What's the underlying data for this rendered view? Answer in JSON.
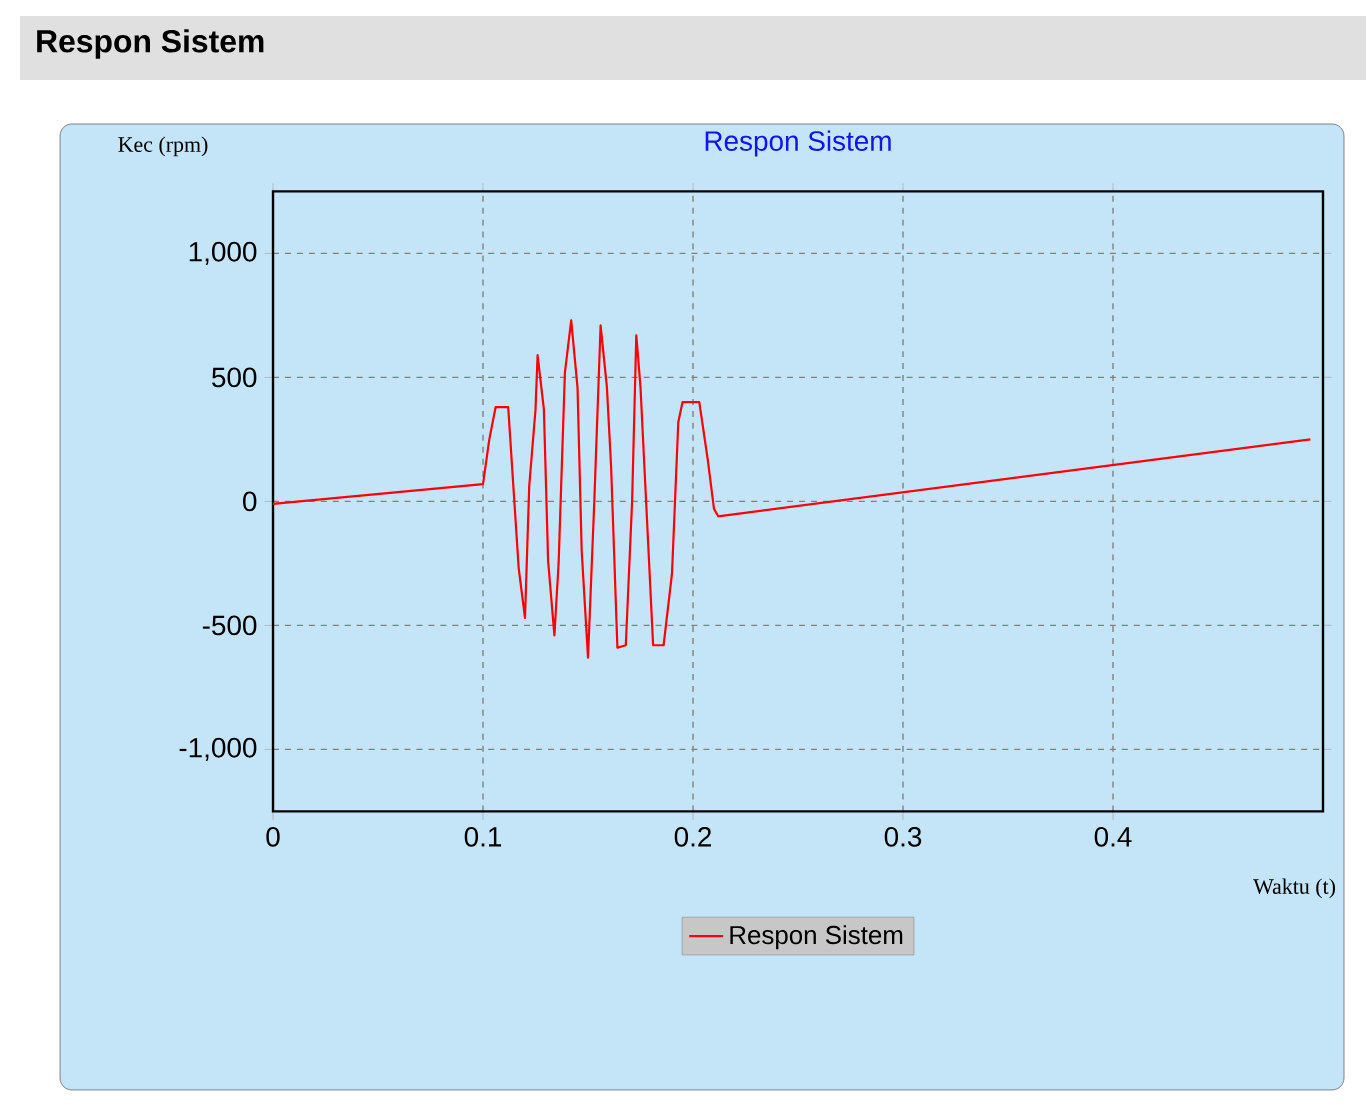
{
  "chart_data": {
    "type": "line",
    "title": "Respon Sistem",
    "xlabel": "Waktu (t)",
    "ylabel": "Kec (rpm)",
    "annotations": [
      "Respon Sistem"
    ],
    "xlim": [
      0,
      0.5
    ],
    "ylim": [
      -1250,
      1250
    ],
    "xticks": [
      0,
      0.1,
      0.2,
      0.3,
      0.4
    ],
    "yticks": [
      {
        "value": -1000,
        "label": "-1,000"
      },
      {
        "value": -500,
        "label": "-500"
      },
      0,
      500,
      {
        "value": 1000,
        "label": "1,000"
      }
    ],
    "grid": true,
    "legend": "bottom",
    "line_style": "solid",
    "marker": "none",
    "series": [
      {
        "name": "Respon Sistem",
        "color": "#ff0000",
        "x": [
          0,
          0.1,
          0.103,
          0.106,
          0.112,
          0.115,
          0.117,
          0.12,
          0.122,
          0.125,
          0.126,
          0.129,
          0.131,
          0.134,
          0.136,
          0.139,
          0.142,
          0.145,
          0.147,
          0.15,
          0.153,
          0.156,
          0.159,
          0.161,
          0.164,
          0.168,
          0.171,
          0.173,
          0.175,
          0.179,
          0.181,
          0.186,
          0.19,
          0.193,
          0.195,
          0.203,
          0.207,
          0.21,
          0.212,
          0.494
        ],
        "values": [
          -10,
          70,
          250,
          380,
          380,
          -10,
          -270,
          -470,
          60,
          370,
          590,
          370,
          -240,
          -540,
          -250,
          520,
          730,
          460,
          -200,
          -630,
          0,
          710,
          460,
          140,
          -590,
          -580,
          0,
          670,
          460,
          -230,
          -580,
          -580,
          -290,
          320,
          400,
          400,
          170,
          -30,
          -60,
          250
        ]
      }
    ]
  }
}
